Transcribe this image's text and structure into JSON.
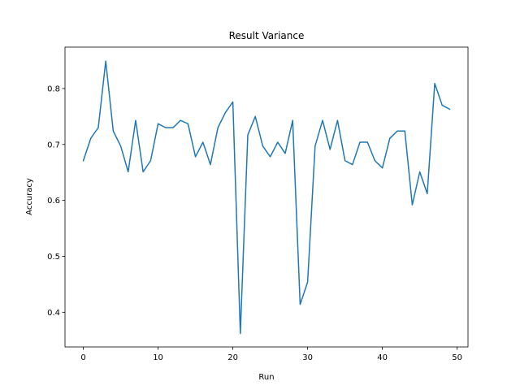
{
  "chart_data": {
    "type": "line",
    "title": "Result Variance",
    "xlabel": "Run",
    "ylabel": "Accuracy",
    "xlim": [
      -2.45,
      51.45
    ],
    "ylim": [
      0.338,
      0.874
    ],
    "xticks": [
      0,
      10,
      20,
      30,
      40,
      50
    ],
    "yticks": [
      0.4,
      0.5,
      0.6,
      0.7,
      0.8
    ],
    "ytick_labels": [
      "0.4",
      "0.5",
      "0.6",
      "0.7",
      "0.8"
    ],
    "grid": false,
    "legend": "none",
    "color": "#1f77b4",
    "series": [
      {
        "x": [
          0,
          1,
          2,
          3,
          4,
          5,
          6,
          7,
          8,
          9,
          10,
          11,
          12,
          13,
          14,
          15,
          16,
          17,
          18,
          19,
          20,
          21,
          22,
          23,
          24,
          25,
          26,
          27,
          28,
          29,
          30,
          31,
          32,
          33,
          34,
          35,
          36,
          37,
          38,
          39,
          40,
          41,
          42,
          43,
          44,
          45,
          46,
          47,
          48,
          49
        ],
        "values": [
          0.671,
          0.711,
          0.73,
          0.849,
          0.724,
          0.697,
          0.651,
          0.743,
          0.651,
          0.671,
          0.737,
          0.73,
          0.73,
          0.743,
          0.737,
          0.678,
          0.704,
          0.664,
          0.73,
          0.757,
          0.776,
          0.362,
          0.717,
          0.75,
          0.697,
          0.678,
          0.704,
          0.684,
          0.743,
          0.414,
          0.454,
          0.697,
          0.743,
          0.691,
          0.743,
          0.671,
          0.664,
          0.704,
          0.704,
          0.671,
          0.658,
          0.711,
          0.724,
          0.724,
          0.592,
          0.651,
          0.612,
          0.809,
          0.77,
          0.763
        ]
      }
    ]
  }
}
